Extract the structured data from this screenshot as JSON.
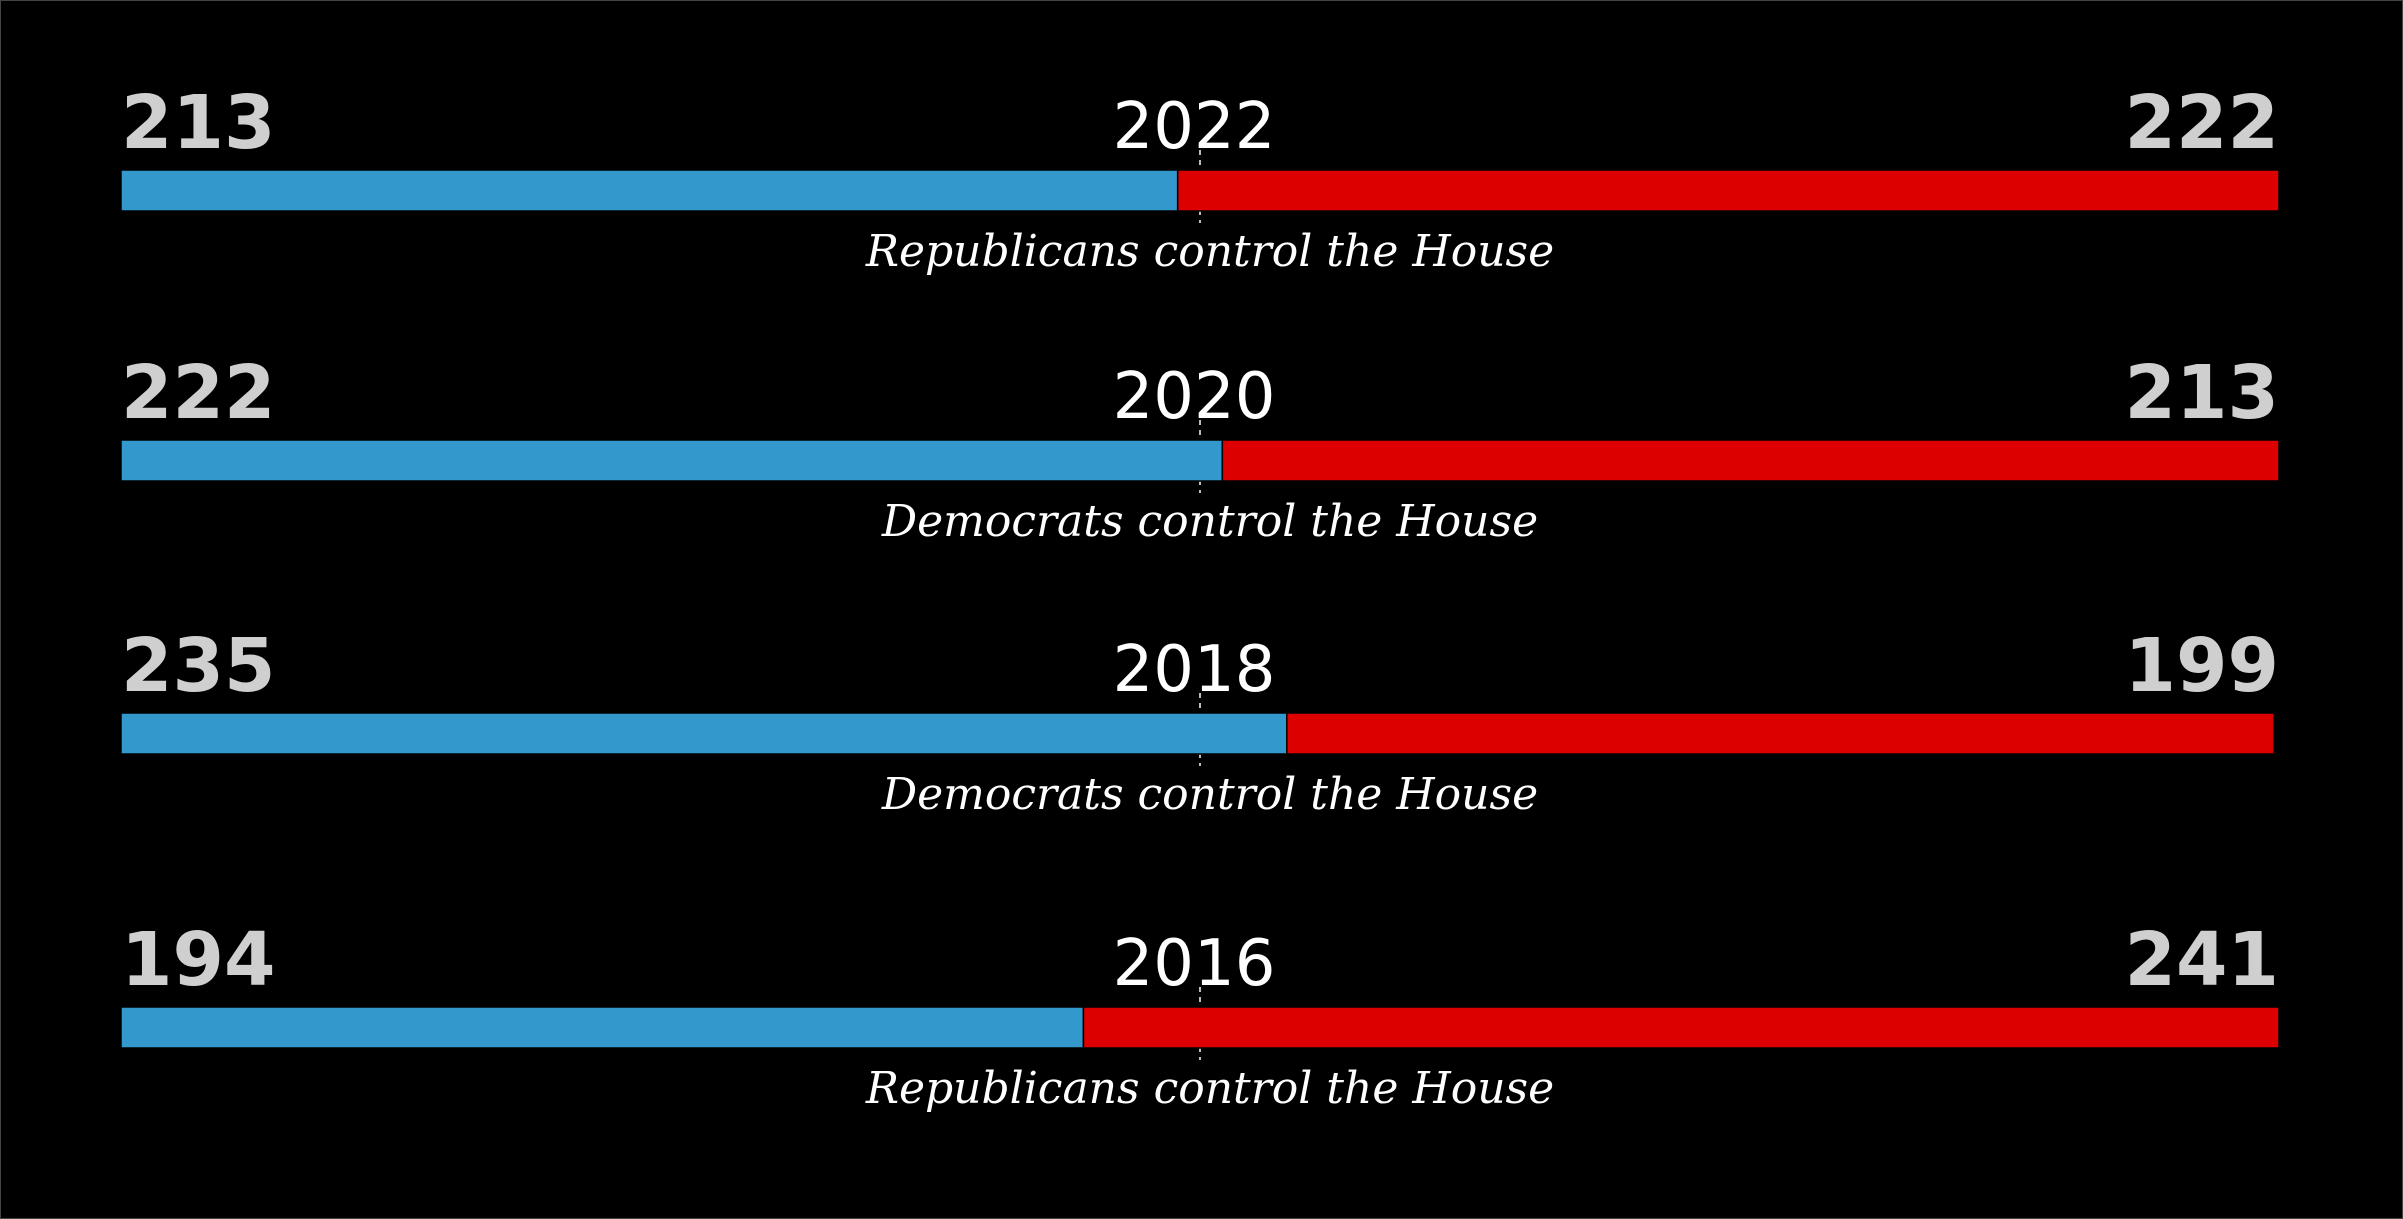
{
  "chart_data": {
    "type": "bar",
    "orientation": "horizontal",
    "stacked": true,
    "categories": [
      "2022",
      "2020",
      "2018",
      "2016"
    ],
    "series": [
      {
        "color": "#3399cc",
        "values": [
          213,
          222,
          235,
          194
        ]
      },
      {
        "color": "#dd0000",
        "values": [
          222,
          213,
          199,
          241
        ]
      }
    ],
    "annotations": [
      "Republicans control the House",
      "Democrats control the House",
      "Democrats control the House",
      "Republicans control the House"
    ],
    "xlim": [
      0,
      435
    ]
  }
}
